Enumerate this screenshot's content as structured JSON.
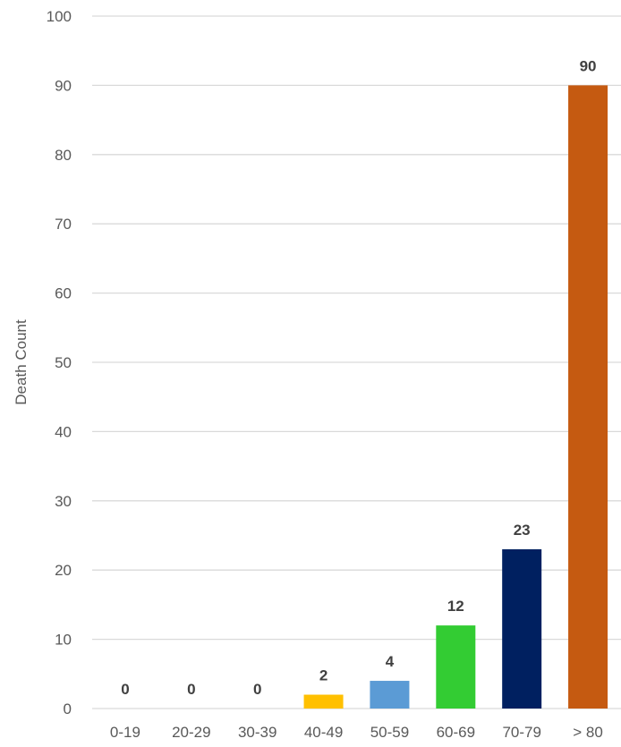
{
  "chart_data": {
    "type": "bar",
    "title": "",
    "xlabel": "",
    "ylabel": "Death Count",
    "ylim": [
      0,
      100
    ],
    "yticks": [
      0,
      10,
      20,
      30,
      40,
      50,
      60,
      70,
      80,
      90,
      100
    ],
    "categories": [
      "0-19",
      "20-29",
      "30-39",
      "40-49",
      "50-59",
      "60-69",
      "70-79",
      "> 80"
    ],
    "values": [
      0,
      0,
      0,
      2,
      4,
      12,
      23,
      90
    ],
    "colors": [
      "#4472C4",
      "#ED7D31",
      "#A5A5A5",
      "#FFC000",
      "#5B9BD5",
      "#33CC33",
      "#002060",
      "#C55A11"
    ],
    "grid": true,
    "legend": "none"
  }
}
